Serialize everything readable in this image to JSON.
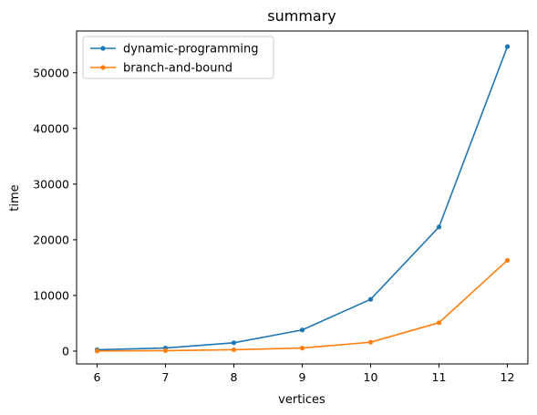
{
  "chart_data": {
    "type": "line",
    "title": "summary",
    "xlabel": "vertices",
    "ylabel": "time",
    "x": [
      6,
      7,
      8,
      9,
      10,
      11,
      12
    ],
    "xlim": [
      5.7,
      12.3
    ],
    "ylim": [
      -2300,
      57500
    ],
    "xticks": [
      6,
      7,
      8,
      9,
      10,
      11,
      12
    ],
    "yticks": [
      0,
      10000,
      20000,
      30000,
      40000,
      50000
    ],
    "grid": false,
    "legend_position": "top-left",
    "series": [
      {
        "name": "dynamic-programming",
        "color": "#1f77b4",
        "marker": "dot",
        "values": [
          250,
          550,
          1500,
          3800,
          9300,
          22300,
          54700
        ]
      },
      {
        "name": "branch-and-bound",
        "color": "#ff7f0e",
        "marker": "dot",
        "values": [
          30,
          80,
          250,
          550,
          1600,
          5100,
          16300
        ]
      }
    ]
  }
}
